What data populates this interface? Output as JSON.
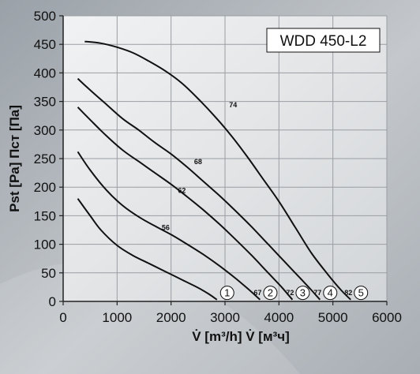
{
  "chart_data": {
    "type": "line",
    "title": "WDD 450-L2",
    "xlabel": "V̇ [m³/h]  V̇ [м³ч]",
    "ylabel": "Pst [Pa]  Πст [Па]",
    "xlim": [
      0,
      6000
    ],
    "ylim": [
      0,
      500
    ],
    "xticks": [
      "0",
      "1000",
      "2000",
      "3000",
      "4000",
      "5000",
      "6000"
    ],
    "yticks": [
      "0",
      "50",
      "100",
      "150",
      "200",
      "250",
      "300",
      "350",
      "400",
      "450",
      "500"
    ],
    "grid": true,
    "series": [
      {
        "marker": "1",
        "end_label": "",
        "points": [
          [
            270,
            180
          ],
          [
            500,
            150
          ],
          [
            700,
            125
          ],
          [
            1000,
            98
          ],
          [
            1300,
            80
          ],
          [
            1600,
            66
          ],
          [
            1900,
            52
          ],
          [
            2200,
            38
          ],
          [
            2500,
            24
          ],
          [
            2700,
            13
          ],
          [
            2850,
            3
          ]
        ]
      },
      {
        "marker": "2",
        "end_label": "67",
        "mid_label": "56",
        "mid_at": [
          1900,
          125
        ],
        "points": [
          [
            270,
            262
          ],
          [
            500,
            230
          ],
          [
            800,
            195
          ],
          [
            1100,
            168
          ],
          [
            1400,
            148
          ],
          [
            1700,
            132
          ],
          [
            2000,
            117
          ],
          [
            2300,
            100
          ],
          [
            2600,
            82
          ],
          [
            2900,
            62
          ],
          [
            3200,
            40
          ],
          [
            3450,
            20
          ],
          [
            3650,
            3
          ]
        ]
      },
      {
        "marker": "3",
        "end_label": "72",
        "mid_label": "62",
        "mid_at": [
          2200,
          190
        ],
        "points": [
          [
            270,
            340
          ],
          [
            500,
            318
          ],
          [
            800,
            290
          ],
          [
            1100,
            265
          ],
          [
            1400,
            245
          ],
          [
            1700,
            225
          ],
          [
            2000,
            205
          ],
          [
            2300,
            183
          ],
          [
            2600,
            160
          ],
          [
            2900,
            135
          ],
          [
            3200,
            108
          ],
          [
            3500,
            80
          ],
          [
            3800,
            50
          ],
          [
            4050,
            25
          ],
          [
            4250,
            3
          ]
        ]
      },
      {
        "marker": "4",
        "end_label": "77",
        "mid_label": "68",
        "mid_at": [
          2500,
          240
        ],
        "points": [
          [
            270,
            390
          ],
          [
            500,
            370
          ],
          [
            800,
            345
          ],
          [
            1100,
            320
          ],
          [
            1400,
            300
          ],
          [
            1700,
            278
          ],
          [
            2000,
            258
          ],
          [
            2300,
            235
          ],
          [
            2600,
            210
          ],
          [
            2900,
            185
          ],
          [
            3200,
            158
          ],
          [
            3500,
            130
          ],
          [
            3800,
            100
          ],
          [
            4100,
            70
          ],
          [
            4400,
            40
          ],
          [
            4600,
            20
          ],
          [
            4760,
            3
          ]
        ]
      },
      {
        "marker": "5",
        "end_label": "82",
        "mid_label": "74",
        "mid_at": [
          3150,
          340
        ],
        "points": [
          [
            400,
            455
          ],
          [
            700,
            452
          ],
          [
            1000,
            445
          ],
          [
            1300,
            435
          ],
          [
            1600,
            420
          ],
          [
            1900,
            403
          ],
          [
            2200,
            382
          ],
          [
            2500,
            355
          ],
          [
            2800,
            325
          ],
          [
            3100,
            292
          ],
          [
            3400,
            255
          ],
          [
            3700,
            215
          ],
          [
            4000,
            175
          ],
          [
            4300,
            130
          ],
          [
            4600,
            85
          ],
          [
            4900,
            48
          ],
          [
            5150,
            20
          ],
          [
            5330,
            3
          ]
        ]
      }
    ]
  }
}
